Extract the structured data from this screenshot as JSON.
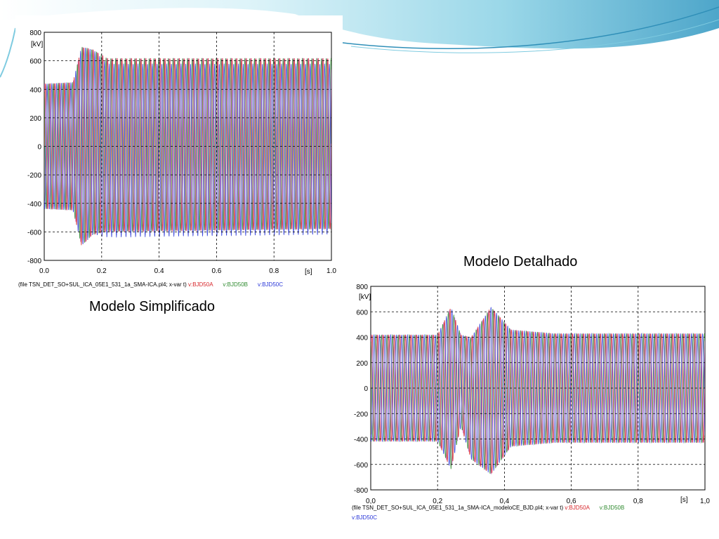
{
  "captions": {
    "simplificado": "Modelo Simplificado",
    "detalhado": "Modelo Detalhado"
  },
  "colors": {
    "phase_a": "#d7262b",
    "phase_b": "#2f8a2f",
    "phase_c": "#2a37d8",
    "phase_mix": "#c05ab8",
    "grid": "#000000",
    "banner_light": "#cdeef6",
    "banner_mid": "#7fcbe0",
    "banner_dark": "#2f8fb8"
  },
  "chart_data": [
    {
      "type": "line",
      "name": "simplificado",
      "xlabel": "[s]",
      "ylabel": "[kV]",
      "xlim": [
        0.0,
        1.0
      ],
      "ylim": [
        -800,
        800
      ],
      "x_ticks": [
        "0.0",
        "0.2",
        "0.4",
        "0.6",
        "0.8",
        "1.0"
      ],
      "y_ticks": [
        "800",
        "600",
        "400",
        "200",
        "0",
        "-200",
        "-400",
        "-600",
        "-800"
      ],
      "grid": true,
      "footer_file": "(file TSN_DET_SO+SUL_ICA_05E1_531_1a_SMA-ICA.pl4; x-var t)",
      "series": [
        {
          "name": "v:BJD50A",
          "color_key": "phase_a",
          "phase": 0
        },
        {
          "name": "v:BJD50B",
          "color_key": "phase_b",
          "phase": 2.094
        },
        {
          "name": "v:BJD50C",
          "color_key": "phase_c",
          "phase": 4.189
        }
      ],
      "envelope": [
        {
          "t": 0.0,
          "upper": 440,
          "lower": -440,
          "offset": 0
        },
        {
          "t": 0.1,
          "upper": 450,
          "lower": -450,
          "offset": 0
        },
        {
          "t": 0.13,
          "upper": 700,
          "lower": -700,
          "offset": 0
        },
        {
          "t": 0.17,
          "upper": 680,
          "lower": -620,
          "offset": 0
        },
        {
          "t": 0.22,
          "upper": 640,
          "lower": -580,
          "offset": -60
        },
        {
          "t": 1.0,
          "upper": 640,
          "lower": -560,
          "offset": -60
        }
      ]
    },
    {
      "type": "line",
      "name": "detalhado",
      "xlabel": "[s]",
      "ylabel": "[kV]",
      "xlim": [
        0.0,
        1.0
      ],
      "ylim": [
        -800,
        800
      ],
      "x_ticks": [
        "0,0",
        "0,2",
        "0,4",
        "0,6",
        "0,8",
        "1,0"
      ],
      "y_ticks": [
        "800",
        "600",
        "400",
        "200",
        "0",
        "-200",
        "-400",
        "-600",
        "-800"
      ],
      "grid": true,
      "footer_file": "(file TSN_DET_SO+SUL_ICA_05E1_531_1a_SMA-ICA_modeloCE_BJD.pl4; x-var t)",
      "series": [
        {
          "name": "v:BJD50A",
          "color_key": "phase_a",
          "phase": 0
        },
        {
          "name": "v:BJD50B",
          "color_key": "phase_b",
          "phase": 2.094
        },
        {
          "name": "v:BJD50C",
          "color_key": "phase_c",
          "phase": 4.189
        }
      ],
      "envelope": [
        {
          "t": 0.0,
          "upper": 420,
          "lower": -420,
          "offset": 0
        },
        {
          "t": 0.2,
          "upper": 420,
          "lower": -420,
          "offset": 0
        },
        {
          "t": 0.24,
          "upper": 640,
          "lower": -640,
          "offset": 0
        },
        {
          "t": 0.27,
          "upper": 420,
          "lower": -300,
          "offset": 0
        },
        {
          "t": 0.3,
          "upper": 400,
          "lower": -560,
          "offset": 0
        },
        {
          "t": 0.36,
          "upper": 640,
          "lower": -680,
          "offset": 0
        },
        {
          "t": 0.42,
          "upper": 460,
          "lower": -460,
          "offset": 0
        },
        {
          "t": 0.55,
          "upper": 430,
          "lower": -430,
          "offset": 0
        },
        {
          "t": 1.0,
          "upper": 430,
          "lower": -430,
          "offset": 0
        }
      ]
    }
  ]
}
